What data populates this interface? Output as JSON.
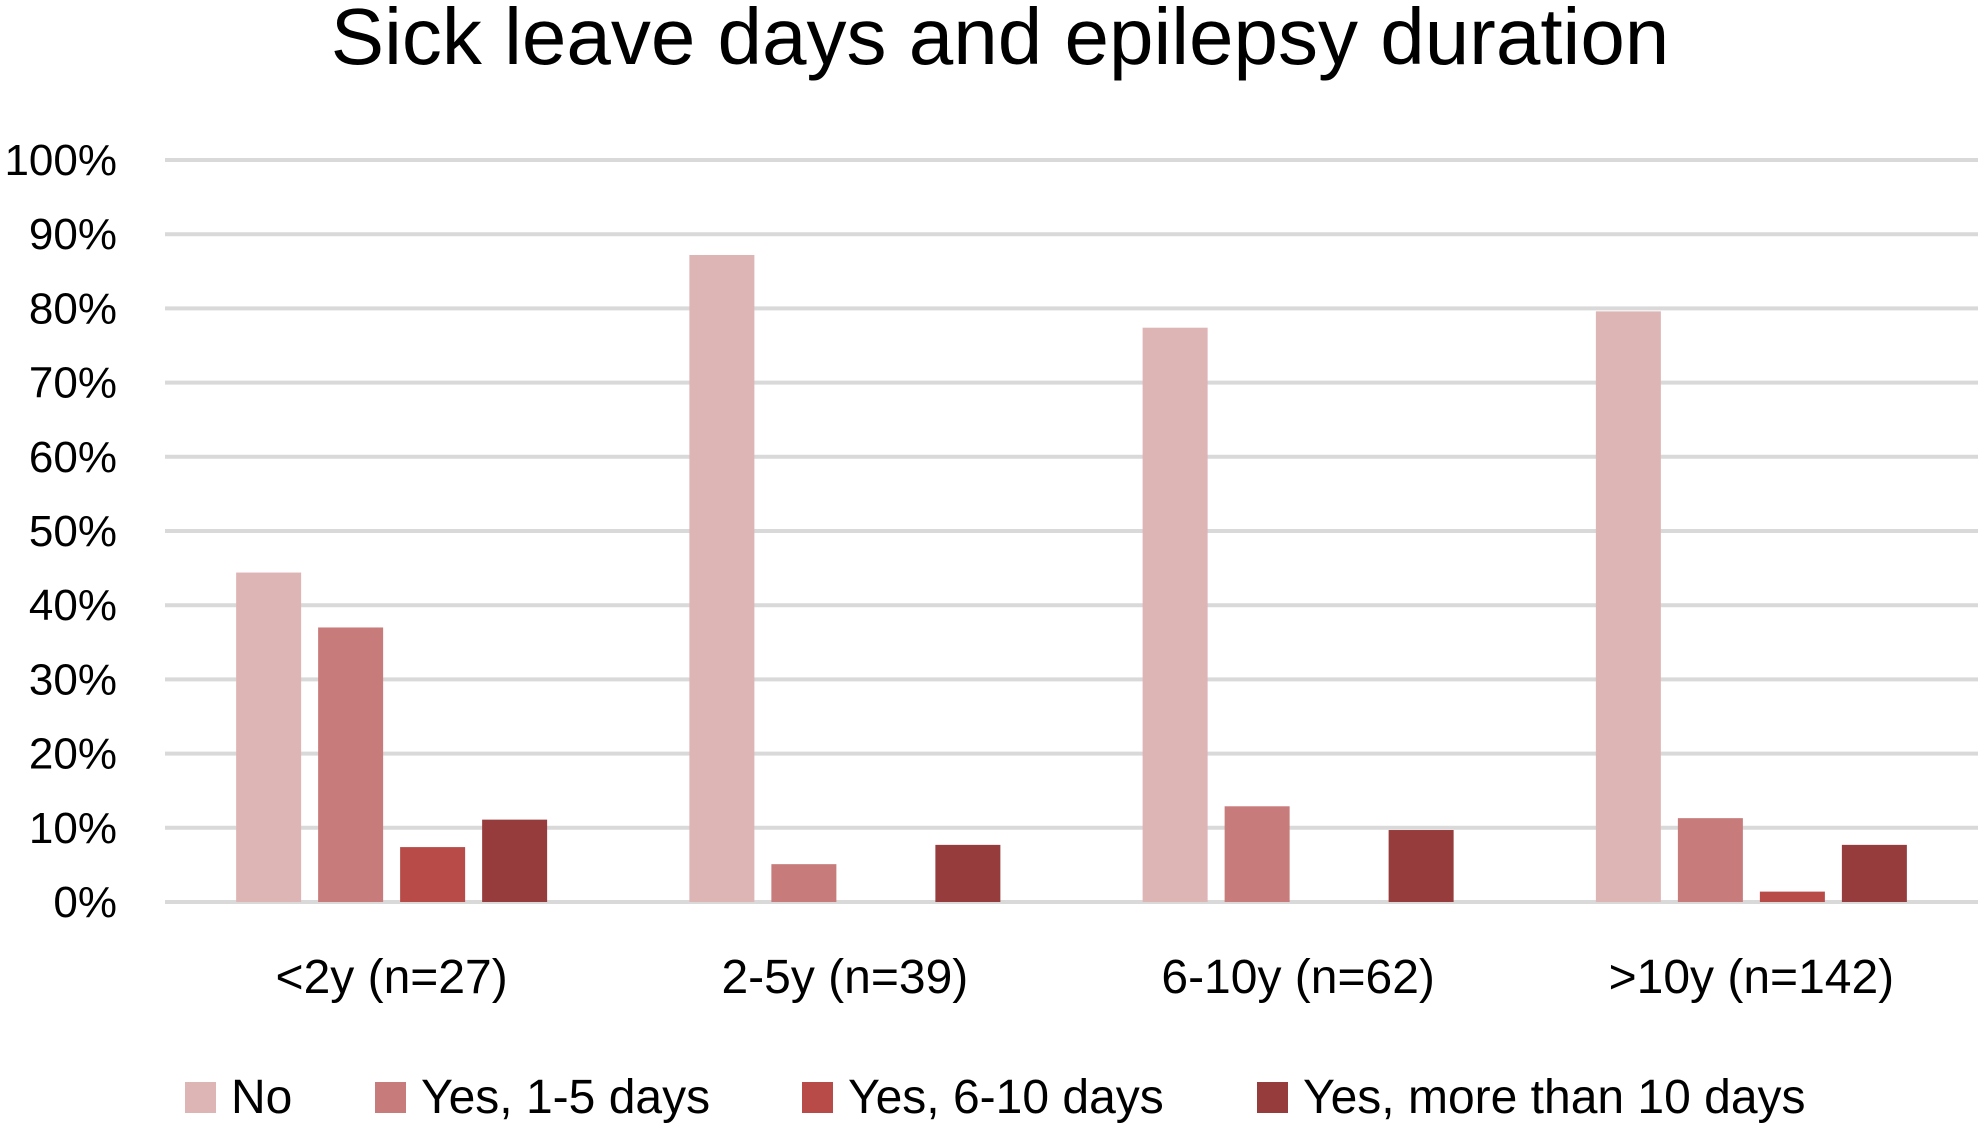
{
  "chart_data": {
    "type": "bar",
    "title": "Sick leave days and epilepsy duration",
    "xlabel": "",
    "ylabel": "",
    "ylim": [
      0,
      100
    ],
    "yticks": [
      "0%",
      "10%",
      "20%",
      "30%",
      "40%",
      "50%",
      "60%",
      "70%",
      "80%",
      "90%",
      "100%"
    ],
    "grid": true,
    "legend_position": "bottom",
    "categories": [
      "<2y (n=27)",
      "2-5y (n=39)",
      "6-10y (n=62)",
      ">10y (n=142)"
    ],
    "series": [
      {
        "name": "No",
        "color": "#deb5b5",
        "values": [
          44.4,
          87.2,
          77.4,
          79.6
        ]
      },
      {
        "name": "Yes, 1-5 days",
        "color": "#c87b7b",
        "values": [
          37.0,
          5.1,
          12.9,
          11.3
        ]
      },
      {
        "name": "Yes, 6-10 days",
        "color": "#b84a48",
        "values": [
          7.4,
          0,
          0,
          1.4
        ]
      },
      {
        "name": "Yes, more than 10 days",
        "color": "#963c3c",
        "values": [
          11.1,
          7.7,
          9.7,
          7.7
        ]
      }
    ],
    "gridline_color": "#d9d9d9"
  }
}
